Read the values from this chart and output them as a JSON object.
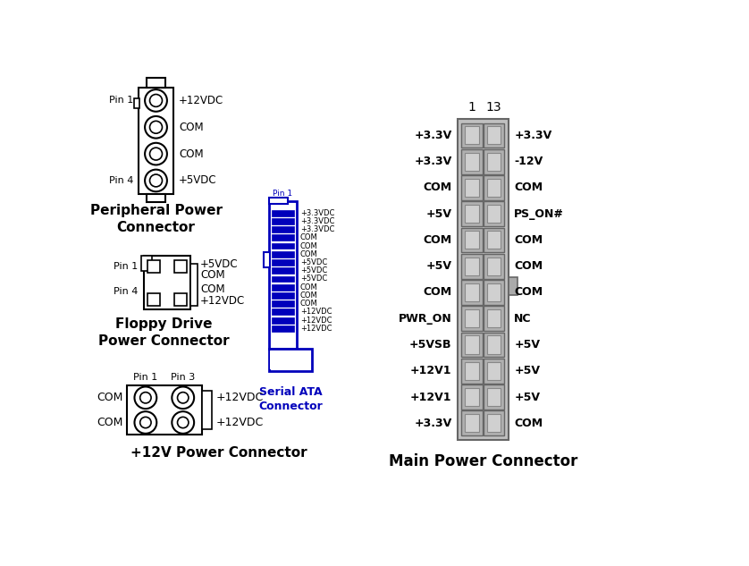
{
  "bg_color": "#ffffff",
  "black": "#000000",
  "blue": "#0000BB",
  "gray": "#666666",
  "peripheral_pins": [
    "+12VDC",
    "COM",
    "COM",
    "+5VDC"
  ],
  "floppy_pins": [
    "+5VDC",
    "COM",
    "COM",
    "+12VDC"
  ],
  "sata_labels": [
    "+3.3VDC",
    "+3.3VDC",
    "+3.3VDC",
    "COM",
    "COM",
    "COM",
    "+5VDC",
    "+5VDC",
    "+5VDC",
    "COM",
    "COM",
    "COM",
    "+12VDC",
    "+12VDC",
    "+12VDC"
  ],
  "main_left": [
    "+3.3V",
    "+3.3V",
    "COM",
    "+5V",
    "COM",
    "+5V",
    "COM",
    "PWR_ON",
    "+5VSB",
    "+12V1",
    "+12V1",
    "+3.3V"
  ],
  "main_right": [
    "+3.3V",
    "-12V",
    "COM",
    "PS_ON#",
    "COM",
    "COM",
    "COM",
    "NC",
    "+5V",
    "+5V",
    "+5V",
    "COM"
  ],
  "peripheral_label": "Peripheral Power\nConnector",
  "floppy_label": "Floppy Drive\nPower Connector",
  "sata_label": "Serial ATA\nConnector",
  "v12_label": "+12V Power Connector",
  "main_label": "Main Power Connector",
  "col1_label": "1",
  "col13_label": "13"
}
